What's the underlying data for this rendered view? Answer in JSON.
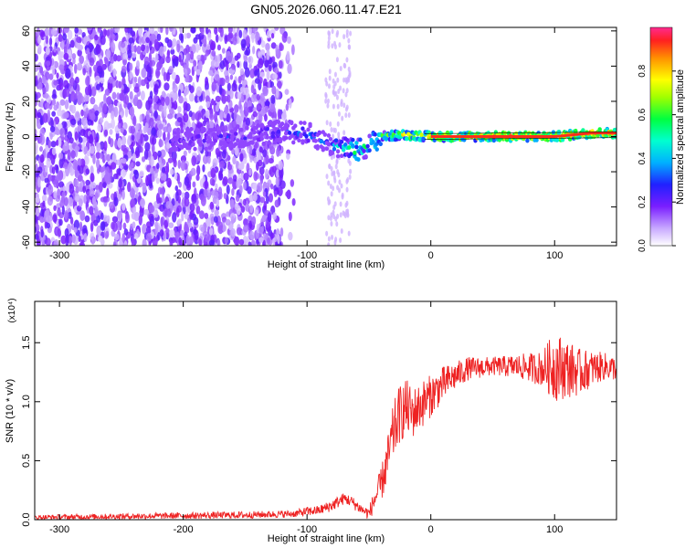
{
  "title": "GN05.2026.060.11.47.E21",
  "chart_data": [
    {
      "type": "heatmap",
      "name": "spectrogram",
      "xlabel": "Height of straight line (km)",
      "ylabel": "Frequency (Hz)",
      "xlim": [
        -320,
        150
      ],
      "ylim": [
        -62,
        62
      ],
      "x_ticks": [
        -300,
        -200,
        -100,
        0,
        100
      ],
      "x_tick_labels": [
        "-300",
        "-200",
        "-100",
        "0",
        "100"
      ],
      "y_ticks": [
        -60,
        -40,
        -20,
        0,
        20,
        40,
        60
      ],
      "y_tick_labels": [
        "-60",
        "-40",
        "-20",
        "0",
        "20",
        "40",
        "60"
      ],
      "colorbar": {
        "label": "Normalized spectral amplitude",
        "range": [
          0,
          1
        ],
        "ticks": [
          0,
          0.2,
          0.4,
          0.6,
          0.8
        ],
        "tick_labels": [
          "0.0",
          "0.2",
          "0.4",
          "0.6",
          "0.8"
        ]
      },
      "ridge": {
        "x": [
          -200,
          -150,
          -120,
          -100,
          -80,
          -60,
          -50,
          -40,
          -20,
          0,
          50,
          100,
          130,
          150
        ],
        "y": [
          -2,
          0,
          3,
          2,
          -5,
          -8,
          -5,
          0,
          1,
          0,
          0,
          0,
          2,
          2
        ],
        "amplitude": [
          0.3,
          0.35,
          0.4,
          0.45,
          0.45,
          0.7,
          0.6,
          0.75,
          0.85,
          0.9,
          0.95,
          0.95,
          0.95,
          0.95
        ]
      }
    },
    {
      "type": "line",
      "name": "snr",
      "xlabel": "Height of straight line (km)",
      "ylabel": "SNR (10 * v/v)",
      "y_multiplier": "(x10⁴)",
      "xlim": [
        -320,
        150
      ],
      "ylim": [
        0,
        1.85
      ],
      "x_ticks": [
        -300,
        -200,
        -100,
        0,
        100
      ],
      "x_tick_labels": [
        "-300",
        "-200",
        "-100",
        "0",
        "100"
      ],
      "y_ticks": [
        0,
        0.5,
        1.0,
        1.5
      ],
      "y_tick_labels": [
        "0.0",
        "0.5",
        "1.0",
        "1.5"
      ],
      "color": "#ee2222",
      "envelope": {
        "x": [
          -320,
          -150,
          -110,
          -100,
          -90,
          -80,
          -70,
          -65,
          -60,
          -55,
          -50,
          -45,
          -40,
          -35,
          -30,
          -25,
          -20,
          -15,
          -10,
          -5,
          0,
          10,
          20,
          30,
          50,
          70,
          90,
          100,
          110,
          120,
          130,
          140,
          150
        ],
        "y": [
          0.02,
          0.04,
          0.05,
          0.07,
          0.08,
          0.12,
          0.18,
          0.16,
          0.12,
          0.08,
          0.05,
          0.18,
          0.3,
          0.5,
          0.75,
          0.9,
          0.95,
          0.9,
          0.95,
          1.0,
          1.05,
          1.15,
          1.22,
          1.28,
          1.3,
          1.3,
          1.28,
          1.3,
          1.28,
          1.25,
          1.28,
          1.3,
          1.28
        ],
        "noise": [
          0.02,
          0.03,
          0.03,
          0.04,
          0.04,
          0.05,
          0.05,
          0.05,
          0.05,
          0.04,
          0.06,
          0.1,
          0.15,
          0.2,
          0.25,
          0.25,
          0.25,
          0.22,
          0.2,
          0.2,
          0.18,
          0.15,
          0.12,
          0.1,
          0.08,
          0.1,
          0.15,
          0.3,
          0.25,
          0.2,
          0.15,
          0.12,
          0.1
        ]
      }
    }
  ]
}
